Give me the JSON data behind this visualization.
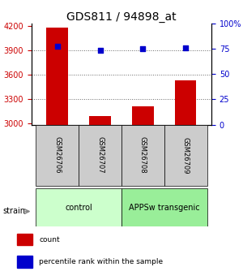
{
  "title": "GDS811 / 94898_at",
  "samples": [
    "GSM26706",
    "GSM26707",
    "GSM26708",
    "GSM26709"
  ],
  "counts": [
    4180,
    3090,
    3210,
    3530
  ],
  "percentiles": [
    78,
    74,
    75,
    76
  ],
  "ylim_left": [
    2980,
    4230
  ],
  "ylim_right": [
    0,
    100
  ],
  "yticks_left": [
    3000,
    3300,
    3600,
    3900,
    4200
  ],
  "yticks_right": [
    0,
    25,
    50,
    75,
    100
  ],
  "ytick_labels_right": [
    "0",
    "25",
    "50",
    "75",
    "100%"
  ],
  "bar_color": "#cc0000",
  "dot_color": "#0000cc",
  "bar_width": 0.5,
  "groups": [
    {
      "label": "control",
      "indices": [
        0,
        1
      ],
      "color": "#ccffcc"
    },
    {
      "label": "APPSw transgenic",
      "indices": [
        2,
        3
      ],
      "color": "#99ee99"
    }
  ],
  "sample_box_color": "#cccccc",
  "strain_label": "strain",
  "strain_arrow_color": "#888888",
  "legend_items": [
    {
      "label": "count",
      "color": "#cc0000"
    },
    {
      "label": "percentile rank within the sample",
      "color": "#0000cc"
    }
  ],
  "grid_dotted_at": [
    3300,
    3600,
    3900
  ],
  "grid_color": "#666666",
  "background_color": "#ffffff",
  "axis_color_left": "#cc0000",
  "axis_color_right": "#0000cc",
  "title_fontsize": 10,
  "tick_fontsize": 7,
  "sample_fontsize": 6,
  "group_fontsize": 7,
  "legend_fontsize": 6.5,
  "strain_fontsize": 7
}
